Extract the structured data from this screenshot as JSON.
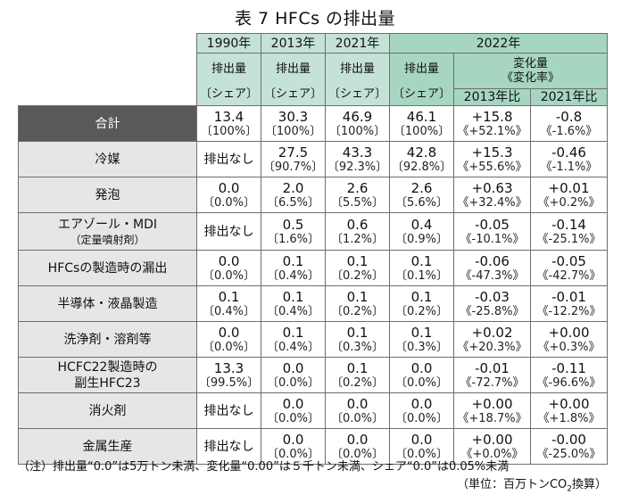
{
  "title": "表 7  HFCs の排出量",
  "header": {
    "years": [
      "1990年",
      "2013年",
      "2021年",
      "2022年"
    ],
    "emission": "排出量",
    "share": "〔シェア〕",
    "change_label": "変化量",
    "change_rate": "《変化率》",
    "vs2013": "2013年比",
    "vs2021": "2021年比"
  },
  "rows": [
    {
      "label": "合計",
      "label2": "",
      "total": true,
      "c1990": {
        "v": "13.4",
        "s": "〔100%〕"
      },
      "c2013": {
        "v": "30.3",
        "s": "〔100%〕"
      },
      "c2021": {
        "v": "46.9",
        "s": "〔100%〕"
      },
      "c2022": {
        "v": "46.1",
        "s": "〔100%〕"
      },
      "d2013": {
        "v": "+15.8",
        "s": "《+52.1%》"
      },
      "d2021": {
        "v": "-0.8",
        "s": "《-1.6%》"
      }
    },
    {
      "label": "冷媒",
      "label2": "",
      "c1990": {
        "none": "排出なし"
      },
      "c2013": {
        "v": "27.5",
        "s": "〔90.7%〕"
      },
      "c2021": {
        "v": "43.3",
        "s": "〔92.3%〕"
      },
      "c2022": {
        "v": "42.8",
        "s": "〔92.8%〕"
      },
      "d2013": {
        "v": "+15.3",
        "s": "《+55.6%》"
      },
      "d2021": {
        "v": "-0.46",
        "s": "《-1.1%》"
      }
    },
    {
      "label": "発泡",
      "label2": "",
      "c1990": {
        "v": "0.0",
        "s": "〔0.0%〕"
      },
      "c2013": {
        "v": "2.0",
        "s": "〔6.5%〕"
      },
      "c2021": {
        "v": "2.6",
        "s": "〔5.5%〕"
      },
      "c2022": {
        "v": "2.6",
        "s": "〔5.6%〕"
      },
      "d2013": {
        "v": "+0.63",
        "s": "《+32.4%》"
      },
      "d2021": {
        "v": "+0.01",
        "s": "《+0.2%》"
      }
    },
    {
      "label": "エアゾール・MDI",
      "label2": "（定量噴射剤）",
      "c1990": {
        "none": "排出なし"
      },
      "c2013": {
        "v": "0.5",
        "s": "〔1.6%〕"
      },
      "c2021": {
        "v": "0.6",
        "s": "〔1.2%〕"
      },
      "c2022": {
        "v": "0.4",
        "s": "〔0.9%〕"
      },
      "d2013": {
        "v": "-0.05",
        "s": "《-10.1%》"
      },
      "d2021": {
        "v": "-0.14",
        "s": "《-25.1%》"
      }
    },
    {
      "label": "HFCsの製造時の漏出",
      "label2": "",
      "c1990": {
        "v": "0.0",
        "s": "〔0.0%〕"
      },
      "c2013": {
        "v": "0.1",
        "s": "〔0.4%〕"
      },
      "c2021": {
        "v": "0.1",
        "s": "〔0.2%〕"
      },
      "c2022": {
        "v": "0.1",
        "s": "〔0.1%〕"
      },
      "d2013": {
        "v": "-0.06",
        "s": "《-47.3%》"
      },
      "d2021": {
        "v": "-0.05",
        "s": "《-42.7%》"
      }
    },
    {
      "label": "半導体・液晶製造",
      "label2": "",
      "c1990": {
        "v": "0.1",
        "s": "〔0.4%〕"
      },
      "c2013": {
        "v": "0.1",
        "s": "〔0.4%〕"
      },
      "c2021": {
        "v": "0.1",
        "s": "〔0.2%〕"
      },
      "c2022": {
        "v": "0.1",
        "s": "〔0.2%〕"
      },
      "d2013": {
        "v": "-0.03",
        "s": "《-25.8%》"
      },
      "d2021": {
        "v": "-0.01",
        "s": "《-12.2%》"
      }
    },
    {
      "label": "洗浄剤・溶剤等",
      "label2": "",
      "c1990": {
        "v": "0.0",
        "s": "〔0.0%〕"
      },
      "c2013": {
        "v": "0.1",
        "s": "〔0.4%〕"
      },
      "c2021": {
        "v": "0.1",
        "s": "〔0.3%〕"
      },
      "c2022": {
        "v": "0.1",
        "s": "〔0.3%〕"
      },
      "d2013": {
        "v": "+0.02",
        "s": "《+20.3%》"
      },
      "d2021": {
        "v": "+0.00",
        "s": "《+0.3%》"
      }
    },
    {
      "label": "HCFC22製造時の",
      "label2": "副生HFC23",
      "label2_large": true,
      "c1990": {
        "v": "13.3",
        "s": "〔99.5%〕"
      },
      "c2013": {
        "v": "0.0",
        "s": "〔0.0%〕"
      },
      "c2021": {
        "v": "0.1",
        "s": "〔0.2%〕"
      },
      "c2022": {
        "v": "0.0",
        "s": "〔0.0%〕"
      },
      "d2013": {
        "v": "-0.01",
        "s": "《-72.7%》"
      },
      "d2021": {
        "v": "-0.11",
        "s": "《-96.6%》"
      }
    },
    {
      "label": "消火剤",
      "label2": "",
      "c1990": {
        "none": "排出なし"
      },
      "c2013": {
        "v": "0.0",
        "s": "〔0.0%〕"
      },
      "c2021": {
        "v": "0.0",
        "s": "〔0.0%〕"
      },
      "c2022": {
        "v": "0.0",
        "s": "〔0.0%〕"
      },
      "d2013": {
        "v": "+0.00",
        "s": "《+18.7%》"
      },
      "d2021": {
        "v": "+0.00",
        "s": "《+1.8%》"
      }
    },
    {
      "label": "金属生産",
      "label2": "",
      "c1990": {
        "none": "排出なし"
      },
      "c2013": {
        "v": "0.0",
        "s": "〔0.0%〕"
      },
      "c2021": {
        "v": "0.0",
        "s": "〔0.0%〕"
      },
      "c2022": {
        "v": "0.0",
        "s": "〔0.0%〕"
      },
      "d2013": {
        "v": "+0.00",
        "s": "《+0.0%》"
      },
      "d2021": {
        "v": "-0.00",
        "s": "《-25.0%》"
      }
    }
  ],
  "note": "（注）排出量“0.0”は5万トン未満、変化量“0.00”は５千トン未満、シェア“0.0”は0.05%未満",
  "unit": {
    "prefix": "（単位：百万トンCO",
    "sub": "2",
    "suffix": "換算）"
  },
  "colors": {
    "header_green": "#c5e2d6",
    "header_green_dark": "#a6d6c2",
    "total_label": "#595959",
    "label_gray": "#e6e6e6"
  }
}
